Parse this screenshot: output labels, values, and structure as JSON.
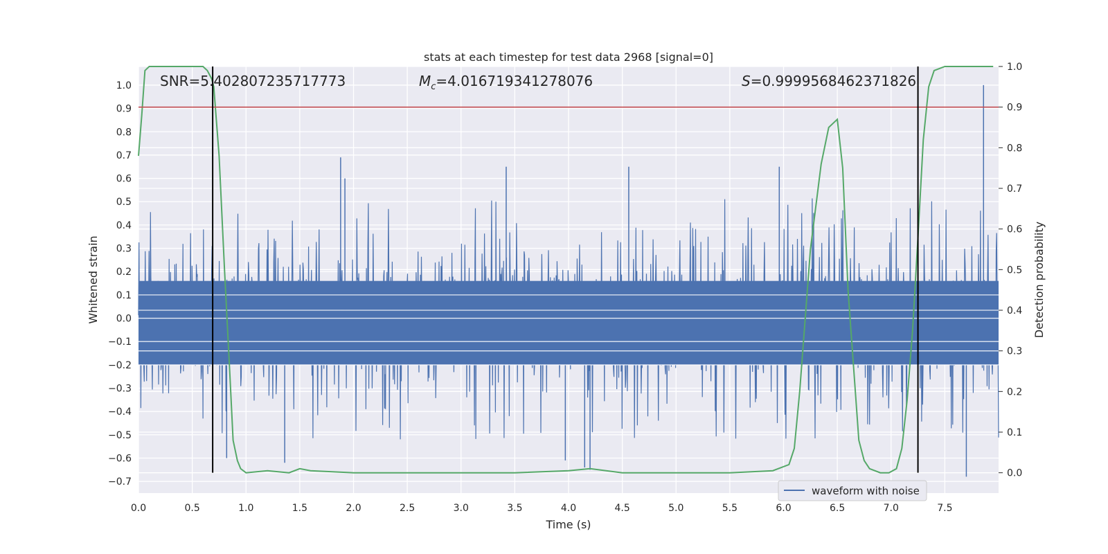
{
  "chart_data": {
    "type": "line",
    "title": "stats at each timestep for test data 2968 [signal=0]",
    "xlabel": "Time (s)",
    "ylabel": "Whitened strain",
    "y2label": "Detection probability",
    "xlim": [
      0.0,
      8.0
    ],
    "ylim": [
      -0.75,
      1.08
    ],
    "y2lim": [
      -0.05,
      1.0
    ],
    "x_ticks": [
      "0.0",
      "0.5",
      "1.0",
      "1.5",
      "2.0",
      "2.5",
      "3.0",
      "3.5",
      "4.0",
      "4.5",
      "5.0",
      "5.5",
      "6.0",
      "6.5",
      "7.0",
      "7.5"
    ],
    "y_ticks": [
      "1.0",
      "0.9",
      "0.8",
      "0.7",
      "0.6",
      "0.5",
      "0.4",
      "0.3",
      "0.2",
      "0.1",
      "0.0",
      "−0.1",
      "−0.2",
      "−0.3",
      "−0.4",
      "−0.5",
      "−0.6",
      "−0.7"
    ],
    "y2_ticks": [
      "1.0",
      "0.9",
      "0.8",
      "0.7",
      "0.6",
      "0.5",
      "0.4",
      "0.3",
      "0.2",
      "0.1",
      "0.0"
    ],
    "grid": true,
    "legend_position": "bottom-right",
    "annotations": {
      "snr": "SNR=5.402807235717773",
      "mc_symbol": "M",
      "mc_subscript": "c",
      "mc_value": "=4.016719341278076",
      "s_symbol": "S",
      "s_value": "=0.9999568462371826"
    },
    "series": [
      {
        "name": "waveform with noise",
        "color": "#4c72b0",
        "style": "dense noise trace",
        "envelope_peaks": [
          {
            "x": 1.88,
            "y": 0.69
          },
          {
            "x": 1.92,
            "y": 0.6
          },
          {
            "x": 3.42,
            "y": 0.65
          },
          {
            "x": 4.56,
            "y": 0.65
          },
          {
            "x": 5.96,
            "y": 0.65
          },
          {
            "x": 7.86,
            "y": 1.0
          },
          {
            "x": 0.82,
            "y": -0.6
          },
          {
            "x": 4.2,
            "y": -0.65
          },
          {
            "x": 4.15,
            "y": -0.64
          },
          {
            "x": 7.7,
            "y": -0.68
          },
          {
            "x": 3.97,
            "y": -0.61
          },
          {
            "x": 1.36,
            "y": -0.62
          }
        ]
      },
      {
        "color": "#55a868",
        "axis": "right",
        "x": [
          0.0,
          0.03,
          0.06,
          0.1,
          0.2,
          0.3,
          0.4,
          0.5,
          0.6,
          0.64,
          0.68,
          0.7,
          0.75,
          0.8,
          0.85,
          0.88,
          0.92,
          0.95,
          1.0,
          1.2,
          1.4,
          1.5,
          1.6,
          2.0,
          2.5,
          3.0,
          3.5,
          4.0,
          4.2,
          4.5,
          5.0,
          5.5,
          5.9,
          6.05,
          6.1,
          6.15,
          6.25,
          6.35,
          6.42,
          6.5,
          6.55,
          6.6,
          6.7,
          6.75,
          6.8,
          6.9,
          6.98,
          7.05,
          7.1,
          7.15,
          7.2,
          7.25,
          7.3,
          7.35,
          7.4,
          7.5,
          7.95
        ],
        "y": [
          0.78,
          0.88,
          0.99,
          1.0,
          1.0,
          1.0,
          1.0,
          1.0,
          1.0,
          0.99,
          0.97,
          0.95,
          0.78,
          0.5,
          0.24,
          0.08,
          0.03,
          0.01,
          0.0,
          0.005,
          0.0,
          0.01,
          0.005,
          0.0,
          0.0,
          0.0,
          0.0,
          0.005,
          0.01,
          0.0,
          0.0,
          0.0,
          0.005,
          0.02,
          0.06,
          0.2,
          0.55,
          0.76,
          0.85,
          0.87,
          0.75,
          0.45,
          0.08,
          0.03,
          0.01,
          0.0,
          0.0,
          0.01,
          0.06,
          0.18,
          0.35,
          0.58,
          0.82,
          0.95,
          0.99,
          1.0,
          1.0
        ]
      },
      {
        "color": "#c44e52",
        "axis": "right",
        "x": [
          0.0,
          8.0
        ],
        "y": [
          0.9,
          0.9
        ]
      },
      {
        "color": "#000000",
        "style": "vertical",
        "x": [
          0.69,
          7.25
        ],
        "y": [
          1.0,
          1.0
        ]
      }
    ]
  }
}
